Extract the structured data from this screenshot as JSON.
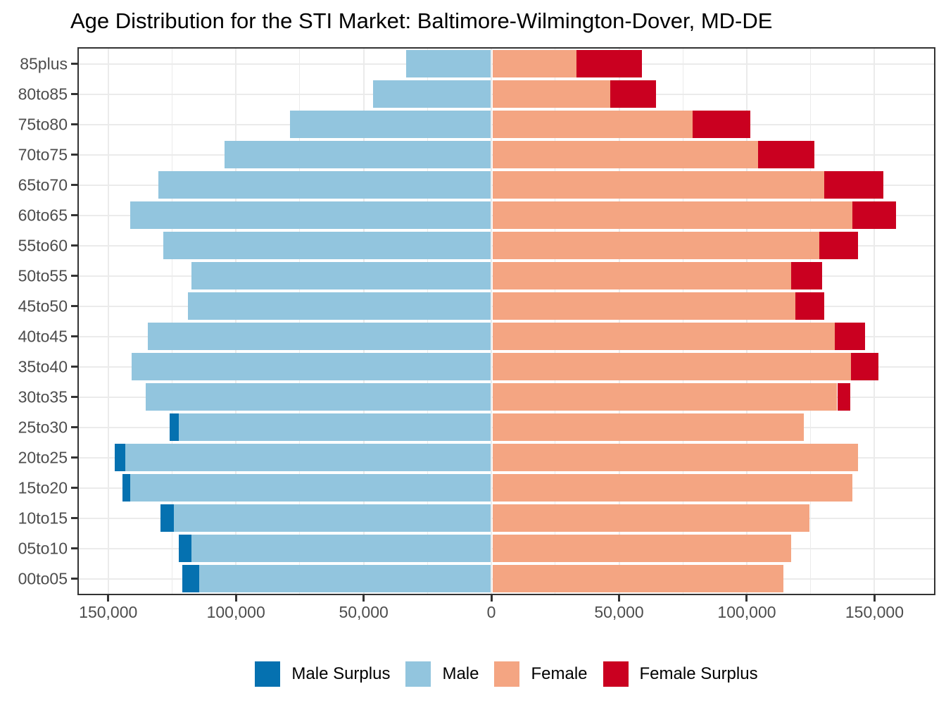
{
  "title": "Age Distribution for the STI Market: Baltimore-Wilmington-Dover, MD-DE",
  "colors": {
    "male_surplus": "#0571B0",
    "male": "#92C5DE",
    "female": "#F4A582",
    "female_surplus": "#CA0020",
    "grid": "#EBEBEB",
    "panel_border": "#333333",
    "tick": "#333333",
    "tick_label": "#4D4D4D",
    "title_text": "#000000",
    "background": "#FFFFFF"
  },
  "chart_data": {
    "type": "bar",
    "subtype": "population_pyramid",
    "orientation": "horizontal",
    "title": "Age Distribution for the STI Market: Baltimore-Wilmington-Dover, MD-DE",
    "categories_top_to_bottom": [
      "85plus",
      "80to85",
      "75to80",
      "70to75",
      "65to70",
      "60to65",
      "55to60",
      "50to55",
      "45to50",
      "40to45",
      "35to40",
      "30to35",
      "25to30",
      "20to25",
      "15to20",
      "10to15",
      "05to10",
      "00to05"
    ],
    "series": [
      {
        "name": "Male",
        "side": "left",
        "color": "#92C5DE",
        "values_top_to_bottom": [
          33000,
          46000,
          78500,
          104000,
          130000,
          141000,
          128000,
          117000,
          118500,
          134000,
          140500,
          135000,
          125500,
          147000,
          144000,
          129000,
          122000,
          120500
        ]
      },
      {
        "name": "Female",
        "side": "right",
        "color": "#F4A582",
        "values_top_to_bottom": [
          58500,
          64000,
          101000,
          126000,
          153000,
          158000,
          143000,
          129000,
          130000,
          146000,
          151000,
          140000,
          122000,
          143000,
          141000,
          124000,
          117000,
          114000
        ]
      }
    ],
    "segment_rule": "light segments on both sides span min(male,female); the excess |male-female| is drawn as a dark 'surplus' segment appended on the larger side",
    "surplus_series": [
      {
        "name": "Male Surplus",
        "color": "#0571B0"
      },
      {
        "name": "Female Surplus",
        "color": "#CA0020"
      }
    ],
    "x_axis": {
      "tick_labels": [
        "150,000",
        "100,000",
        "50,000",
        "0",
        "50,000",
        "100,000",
        "150,000"
      ],
      "tick_values": [
        -150000,
        -100000,
        -50000,
        0,
        50000,
        100000,
        150000
      ],
      "minor_step": 25000,
      "xlim": [
        -161500,
        173300
      ]
    },
    "grid": {
      "vertical_major": true,
      "vertical_minor": true,
      "horizontal_major": true
    },
    "legend": {
      "position": "bottom",
      "items": [
        {
          "label": "Male Surplus",
          "color": "#0571B0"
        },
        {
          "label": "Male",
          "color": "#92C5DE"
        },
        {
          "label": "Female",
          "color": "#F4A582"
        },
        {
          "label": "Female Surplus",
          "color": "#CA0020"
        }
      ]
    }
  }
}
